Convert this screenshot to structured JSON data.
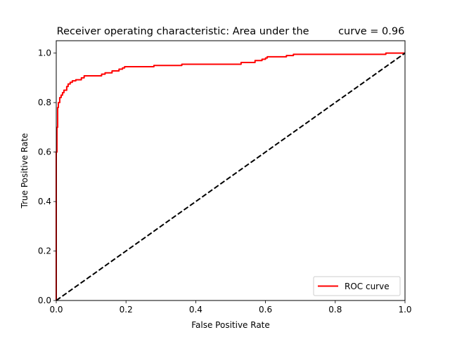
{
  "chart_data": {
    "type": "line",
    "title": "Receiver operating characteristic: Area under the         curve = 0.96",
    "xlabel": "False Positive Rate",
    "ylabel": "True Positive Rate",
    "xlim": [
      0.0,
      1.0
    ],
    "ylim": [
      0.0,
      1.05
    ],
    "xticks": [
      "0.0",
      "0.2",
      "0.4",
      "0.6",
      "0.8",
      "1.0"
    ],
    "yticks": [
      "0.0",
      "0.2",
      "0.4",
      "0.6",
      "0.8",
      "1.0"
    ],
    "grid": false,
    "legend_position": "lower right",
    "series": [
      {
        "name": "ROC curve",
        "color": "#ff0000",
        "style": "solid",
        "x": [
          0.0,
          0.0,
          0.002,
          0.002,
          0.004,
          0.004,
          0.006,
          0.006,
          0.01,
          0.01,
          0.014,
          0.014,
          0.018,
          0.018,
          0.022,
          0.022,
          0.03,
          0.03,
          0.034,
          0.034,
          0.04,
          0.04,
          0.046,
          0.046,
          0.056,
          0.056,
          0.072,
          0.072,
          0.08,
          0.08,
          0.13,
          0.13,
          0.14,
          0.14,
          0.16,
          0.16,
          0.18,
          0.18,
          0.19,
          0.19,
          0.196,
          0.196,
          0.28,
          0.28,
          0.36,
          0.36,
          0.53,
          0.53,
          0.57,
          0.57,
          0.59,
          0.59,
          0.6,
          0.6,
          0.605,
          0.605,
          0.66,
          0.66,
          0.68,
          0.68,
          0.945,
          0.945,
          1.0
        ],
        "y": [
          0.0,
          0.6,
          0.6,
          0.7,
          0.7,
          0.78,
          0.78,
          0.8,
          0.8,
          0.82,
          0.82,
          0.83,
          0.83,
          0.84,
          0.84,
          0.85,
          0.85,
          0.865,
          0.865,
          0.875,
          0.875,
          0.882,
          0.882,
          0.888,
          0.888,
          0.892,
          0.892,
          0.9,
          0.9,
          0.908,
          0.908,
          0.915,
          0.915,
          0.92,
          0.92,
          0.928,
          0.928,
          0.935,
          0.935,
          0.94,
          0.94,
          0.945,
          0.945,
          0.95,
          0.95,
          0.955,
          0.955,
          0.962,
          0.962,
          0.97,
          0.97,
          0.975,
          0.975,
          0.98,
          0.98,
          0.985,
          0.985,
          0.99,
          0.99,
          0.995,
          0.995,
          1.0,
          1.0
        ]
      },
      {
        "name": "",
        "color": "#000000",
        "style": "dashed",
        "x": [
          0.0,
          1.0
        ],
        "y": [
          0.0,
          1.0
        ]
      }
    ]
  }
}
